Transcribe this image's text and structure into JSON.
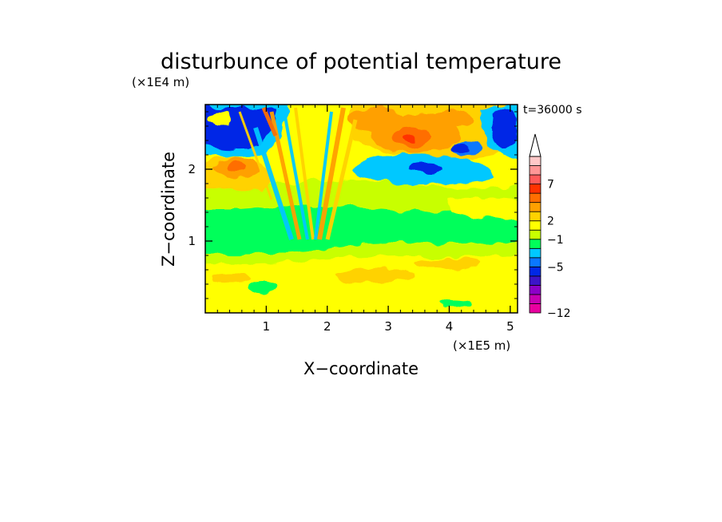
{
  "figure": {
    "title": "disturbunce of potential temperature",
    "time_label": "t=36000 s",
    "xlabel": "X−coordinate",
    "ylabel": "Z−coordinate",
    "x_scale_label": "(×1E5 m)",
    "y_scale_label": "(×1E4 m)"
  },
  "chart_data": {
    "type": "heatmap",
    "title": "disturbunce of potential temperature",
    "xlabel": "X−coordinate",
    "ylabel": "Z−coordinate",
    "x_units_label": "(×1E5 m)",
    "y_units_label": "(×1E4 m)",
    "xlim": [
      0,
      5.12
    ],
    "ylim": [
      0,
      2.9
    ],
    "x_ticks": [
      {
        "value": 1,
        "label": "1"
      },
      {
        "value": 2,
        "label": "2"
      },
      {
        "value": 3,
        "label": "3"
      },
      {
        "value": 4,
        "label": "4"
      },
      {
        "value": 5,
        "label": "5"
      }
    ],
    "y_ticks": [
      {
        "value": 1,
        "label": "1"
      },
      {
        "value": 2,
        "label": "2"
      }
    ],
    "annotation": "t=36000 s",
    "colorbar": {
      "colors": [
        "#e800a0",
        "#c800b4",
        "#8c00c8",
        "#3c14c8",
        "#0028e6",
        "#0a78ff",
        "#00c8ff",
        "#00ff5a",
        "#c8ff00",
        "#ffff00",
        "#ffd200",
        "#ffa000",
        "#ff6e00",
        "#ff3200",
        "#ff5a5a",
        "#ff9696",
        "#ffc8c8"
      ],
      "labels": [
        {
          "after_index": 0,
          "text": "−12"
        },
        {
          "after_index": 4,
          "text": "−5"
        },
        {
          "after_index": 7,
          "text": "−1"
        },
        {
          "after_index": 9,
          "text": "2"
        },
        {
          "after_index": 13,
          "text": "7"
        }
      ],
      "extend_max": true
    },
    "regions": [
      {
        "x": 0.35,
        "z": 2.35,
        "value": "-5 to -3",
        "note": "strong negative anomaly upper left"
      },
      {
        "x": 0.35,
        "z": 2.05,
        "value": "2 to 5",
        "note": "warm band upper left"
      },
      {
        "x": 3.35,
        "z": 2.45,
        "value": "5 to 7",
        "note": "warm core upper middle"
      },
      {
        "x": 3.8,
        "z": 2.1,
        "value": "-5 to -3",
        "note": "cold patch"
      },
      {
        "x": 4.95,
        "z": 2.55,
        "value": "-5 to -3",
        "note": "cold patch upper right"
      },
      {
        "x": 2.5,
        "z": 1.2,
        "value": "-1 to 0",
        "note": "neutral band mid level"
      },
      {
        "x": 2.5,
        "z": 0.4,
        "value": "0 to 2",
        "note": "slightly warm near surface"
      }
    ]
  }
}
